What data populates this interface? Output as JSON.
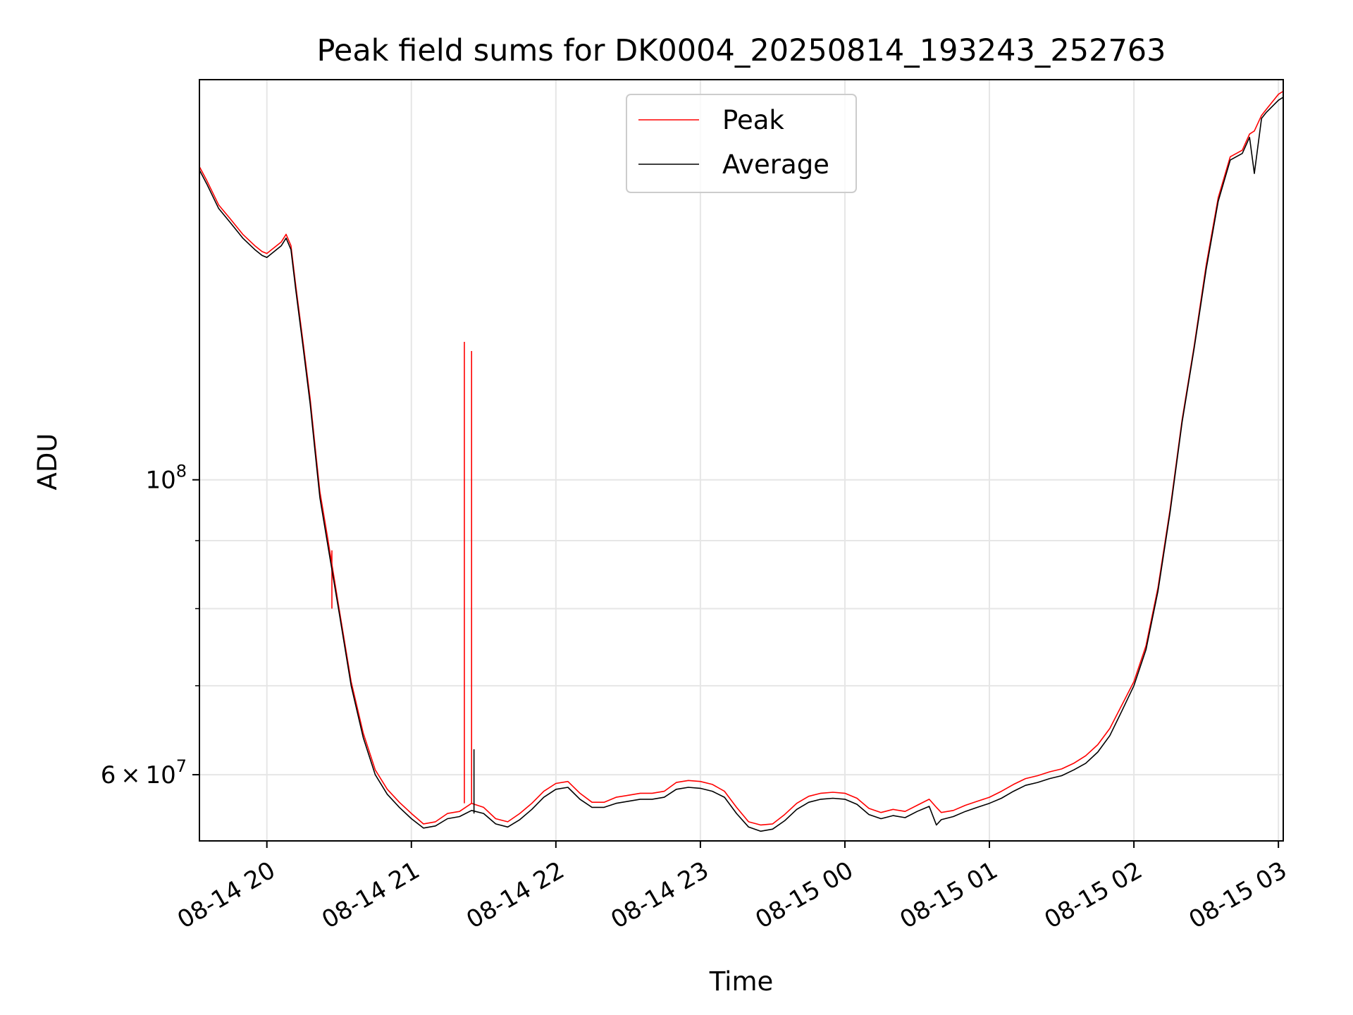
{
  "chart_data": {
    "type": "line",
    "title": "Peak field sums for DK0004_20250814_193243_252763",
    "xlabel": "Time",
    "ylabel": "ADU",
    "yscale": "log",
    "xlim": [
      "2025-08-14 19:32",
      "2025-08-15 03:02"
    ],
    "ylim": [
      53500000,
      200000000
    ],
    "grid": true,
    "legend_position": "top-center",
    "x_ticks": [
      {
        "t": "2025-08-14 20:00",
        "label": "08-14 20"
      },
      {
        "t": "2025-08-14 21:00",
        "label": "08-14 21"
      },
      {
        "t": "2025-08-14 22:00",
        "label": "08-14 22"
      },
      {
        "t": "2025-08-14 23:00",
        "label": "08-14 23"
      },
      {
        "t": "2025-08-15 00:00",
        "label": "08-15 00"
      },
      {
        "t": "2025-08-15 01:00",
        "label": "08-15 01"
      },
      {
        "t": "2025-08-15 02:00",
        "label": "08-15 02"
      },
      {
        "t": "2025-08-15 03:00",
        "label": "08-15 03"
      }
    ],
    "y_ticks_major": [
      {
        "value": 100000000,
        "mantissa": "",
        "base": "10",
        "exp": "8"
      },
      {
        "value": 60000000,
        "mantissa": "6 × ",
        "base": "10",
        "exp": "7"
      }
    ],
    "y_ticks_minor": [
      70000000,
      80000000,
      90000000
    ],
    "series": [
      {
        "name": "Peak",
        "color": "#ff0000",
        "x": [
          "2025-08-14 19:32",
          "2025-08-14 19:35",
          "2025-08-14 19:40",
          "2025-08-14 19:45",
          "2025-08-14 19:50",
          "2025-08-14 19:55",
          "2025-08-14 19:58",
          "2025-08-14 20:00",
          "2025-08-14 20:03",
          "2025-08-14 20:06",
          "2025-08-14 20:08",
          "2025-08-14 20:10",
          "2025-08-14 20:12",
          "2025-08-14 20:15",
          "2025-08-14 20:18",
          "2025-08-14 20:20",
          "2025-08-14 20:22",
          "2025-08-14 20:25",
          "2025-08-14 20:30",
          "2025-08-14 20:35",
          "2025-08-14 20:40",
          "2025-08-14 20:45",
          "2025-08-14 20:50",
          "2025-08-14 20:55",
          "2025-08-14 21:00",
          "2025-08-14 21:05",
          "2025-08-14 21:10",
          "2025-08-14 21:15",
          "2025-08-14 21:20",
          "2025-08-14 21:25",
          "2025-08-14 21:30",
          "2025-08-14 21:35",
          "2025-08-14 21:40",
          "2025-08-14 21:45",
          "2025-08-14 21:50",
          "2025-08-14 21:55",
          "2025-08-14 22:00",
          "2025-08-14 22:05",
          "2025-08-14 22:10",
          "2025-08-14 22:15",
          "2025-08-14 22:20",
          "2025-08-14 22:25",
          "2025-08-14 22:30",
          "2025-08-14 22:35",
          "2025-08-14 22:40",
          "2025-08-14 22:45",
          "2025-08-14 22:50",
          "2025-08-14 22:55",
          "2025-08-14 23:00",
          "2025-08-14 23:05",
          "2025-08-14 23:10",
          "2025-08-14 23:15",
          "2025-08-14 23:20",
          "2025-08-14 23:25",
          "2025-08-14 23:30",
          "2025-08-14 23:35",
          "2025-08-14 23:40",
          "2025-08-14 23:45",
          "2025-08-14 23:50",
          "2025-08-14 23:55",
          "2025-08-15 00:00",
          "2025-08-15 00:05",
          "2025-08-15 00:10",
          "2025-08-15 00:15",
          "2025-08-15 00:20",
          "2025-08-15 00:25",
          "2025-08-15 00:30",
          "2025-08-15 00:35",
          "2025-08-15 00:38",
          "2025-08-15 00:40",
          "2025-08-15 00:45",
          "2025-08-15 00:50",
          "2025-08-15 00:55",
          "2025-08-15 01:00",
          "2025-08-15 01:05",
          "2025-08-15 01:10",
          "2025-08-15 01:15",
          "2025-08-15 01:20",
          "2025-08-15 01:25",
          "2025-08-15 01:30",
          "2025-08-15 01:35",
          "2025-08-15 01:40",
          "2025-08-15 01:45",
          "2025-08-15 01:50",
          "2025-08-15 01:55",
          "2025-08-15 02:00",
          "2025-08-15 02:05",
          "2025-08-15 02:10",
          "2025-08-15 02:15",
          "2025-08-15 02:20",
          "2025-08-15 02:25",
          "2025-08-15 02:30",
          "2025-08-15 02:35",
          "2025-08-15 02:40",
          "2025-08-15 02:45",
          "2025-08-15 02:48",
          "2025-08-15 02:50",
          "2025-08-15 02:53",
          "2025-08-15 02:55",
          "2025-08-15 03:00",
          "2025-08-15 03:02"
        ],
        "y": [
          172000000,
          168000000,
          161000000,
          157000000,
          153000000,
          150000000,
          148500000,
          148000000,
          149500000,
          151000000,
          153000000,
          150000000,
          140000000,
          127000000,
          115000000,
          106000000,
          98000000,
          91000000,
          80000000,
          70500000,
          64500000,
          60500000,
          58500000,
          57200000,
          56100000,
          55100000,
          55300000,
          56100000,
          56300000,
          57100000,
          56700000,
          55600000,
          55300000,
          56100000,
          57100000,
          58300000,
          59100000,
          59300000,
          58100000,
          57200000,
          57200000,
          57700000,
          57900000,
          58100000,
          58100000,
          58300000,
          59200000,
          59400000,
          59300000,
          59000000,
          58300000,
          56700000,
          55300000,
          55000000,
          55100000,
          56000000,
          57100000,
          57800000,
          58100000,
          58200000,
          58100000,
          57600000,
          56600000,
          56200000,
          56500000,
          56300000,
          56900000,
          57500000,
          56700000,
          56200000,
          56400000,
          56900000,
          57300000,
          57700000,
          58300000,
          59000000,
          59600000,
          59900000,
          60300000,
          60600000,
          61200000,
          62000000,
          63200000,
          65000000,
          67700000,
          70500000,
          75000000,
          83000000,
          95000000,
          111000000,
          126000000,
          145000000,
          163000000,
          175000000,
          177000000,
          182000000,
          183000000,
          188000000,
          190000000,
          195000000,
          196000000
        ],
        "spikes": [
          {
            "x": "2025-08-14 21:22",
            "y": 127000000
          },
          {
            "x": "2025-08-14 21:25",
            "y": 125000000
          },
          {
            "x": "2025-08-14 20:27",
            "y": 88500000
          }
        ]
      },
      {
        "name": "Average",
        "color": "#000000",
        "x": [
          "2025-08-14 19:32",
          "2025-08-14 19:35",
          "2025-08-14 19:40",
          "2025-08-14 19:45",
          "2025-08-14 19:50",
          "2025-08-14 19:55",
          "2025-08-14 19:58",
          "2025-08-14 20:00",
          "2025-08-14 20:03",
          "2025-08-14 20:06",
          "2025-08-14 20:08",
          "2025-08-14 20:10",
          "2025-08-14 20:12",
          "2025-08-14 20:15",
          "2025-08-14 20:18",
          "2025-08-14 20:20",
          "2025-08-14 20:22",
          "2025-08-14 20:25",
          "2025-08-14 20:30",
          "2025-08-14 20:35",
          "2025-08-14 20:40",
          "2025-08-14 20:45",
          "2025-08-14 20:50",
          "2025-08-14 20:55",
          "2025-08-14 21:00",
          "2025-08-14 21:05",
          "2025-08-14 21:10",
          "2025-08-14 21:15",
          "2025-08-14 21:20",
          "2025-08-14 21:25",
          "2025-08-14 21:30",
          "2025-08-14 21:35",
          "2025-08-14 21:40",
          "2025-08-14 21:45",
          "2025-08-14 21:50",
          "2025-08-14 21:55",
          "2025-08-14 22:00",
          "2025-08-14 22:05",
          "2025-08-14 22:10",
          "2025-08-14 22:15",
          "2025-08-14 22:20",
          "2025-08-14 22:25",
          "2025-08-14 22:30",
          "2025-08-14 22:35",
          "2025-08-14 22:40",
          "2025-08-14 22:45",
          "2025-08-14 22:50",
          "2025-08-14 22:55",
          "2025-08-14 23:00",
          "2025-08-14 23:05",
          "2025-08-14 23:10",
          "2025-08-14 23:15",
          "2025-08-14 23:20",
          "2025-08-14 23:25",
          "2025-08-14 23:30",
          "2025-08-14 23:35",
          "2025-08-14 23:40",
          "2025-08-14 23:45",
          "2025-08-14 23:50",
          "2025-08-14 23:55",
          "2025-08-15 00:00",
          "2025-08-15 00:05",
          "2025-08-15 00:10",
          "2025-08-15 00:15",
          "2025-08-15 00:20",
          "2025-08-15 00:25",
          "2025-08-15 00:30",
          "2025-08-15 00:35",
          "2025-08-15 00:38",
          "2025-08-15 00:40",
          "2025-08-15 00:45",
          "2025-08-15 00:50",
          "2025-08-15 00:55",
          "2025-08-15 01:00",
          "2025-08-15 01:05",
          "2025-08-15 01:10",
          "2025-08-15 01:15",
          "2025-08-15 01:20",
          "2025-08-15 01:25",
          "2025-08-15 01:30",
          "2025-08-15 01:35",
          "2025-08-15 01:40",
          "2025-08-15 01:45",
          "2025-08-15 01:50",
          "2025-08-15 01:55",
          "2025-08-15 02:00",
          "2025-08-15 02:05",
          "2025-08-15 02:10",
          "2025-08-15 02:15",
          "2025-08-15 02:20",
          "2025-08-15 02:25",
          "2025-08-15 02:30",
          "2025-08-15 02:35",
          "2025-08-15 02:40",
          "2025-08-15 02:45",
          "2025-08-15 02:48",
          "2025-08-15 02:50",
          "2025-08-15 02:53",
          "2025-08-15 02:55",
          "2025-08-15 03:00",
          "2025-08-15 03:02"
        ],
        "y": [
          171000000,
          167000000,
          160000000,
          156000000,
          152000000,
          149000000,
          147500000,
          147000000,
          148500000,
          150000000,
          152000000,
          149000000,
          139000000,
          126000000,
          114000000,
          105000000,
          97000000,
          90000000,
          79500000,
          70000000,
          64000000,
          60000000,
          58000000,
          56700000,
          55600000,
          54700000,
          54900000,
          55600000,
          55800000,
          56400000,
          56100000,
          55100000,
          54800000,
          55500000,
          56500000,
          57700000,
          58500000,
          58700000,
          57500000,
          56700000,
          56700000,
          57100000,
          57300000,
          57500000,
          57500000,
          57700000,
          58500000,
          58700000,
          58600000,
          58300000,
          57700000,
          56100000,
          54800000,
          54400000,
          54600000,
          55400000,
          56500000,
          57200000,
          57500000,
          57600000,
          57500000,
          57000000,
          56000000,
          55600000,
          55900000,
          55700000,
          56300000,
          56800000,
          55000000,
          55500000,
          55800000,
          56300000,
          56700000,
          57100000,
          57600000,
          58300000,
          58900000,
          59200000,
          59600000,
          59900000,
          60500000,
          61200000,
          62400000,
          64200000,
          67000000,
          70000000,
          74500000,
          82500000,
          94500000,
          110500000,
          125500000,
          144000000,
          162000000,
          174000000,
          176000000,
          181000000,
          170000000,
          187000000,
          189000000,
          193000000,
          194000000
        ],
        "spikes": [
          {
            "x": "2025-08-14 21:26",
            "y": 62700000
          }
        ]
      }
    ]
  }
}
